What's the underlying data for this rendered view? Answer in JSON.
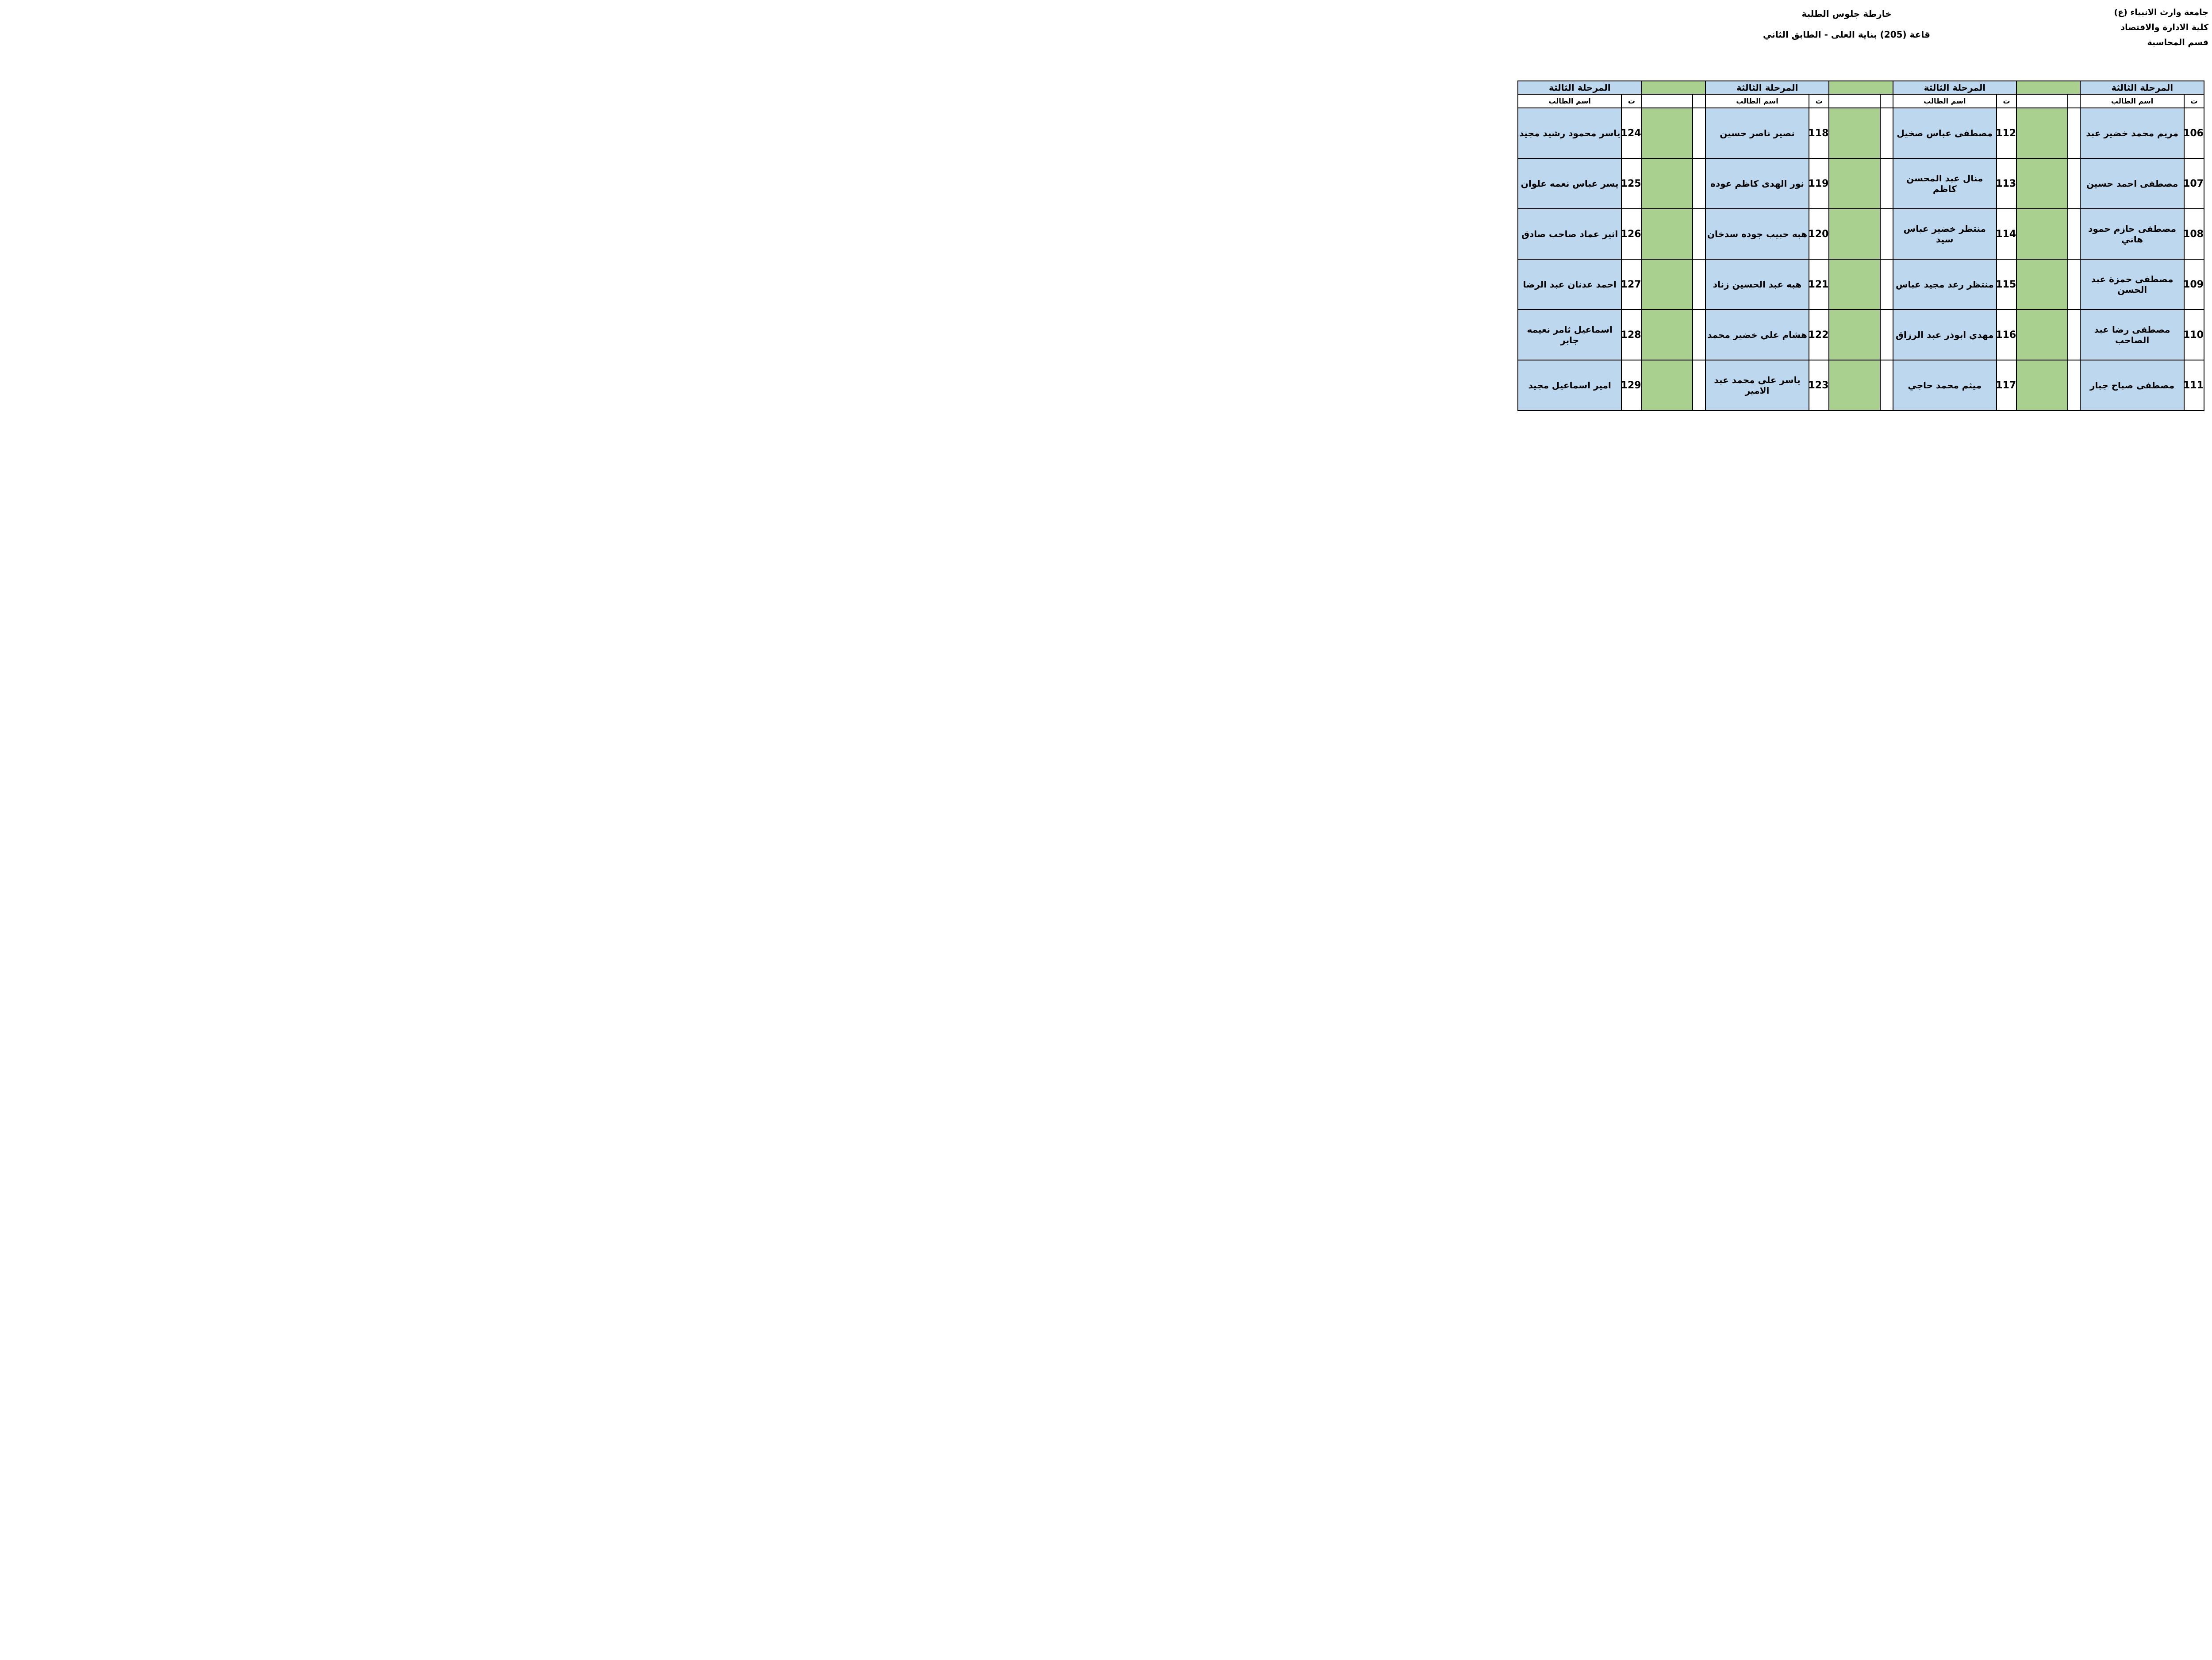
{
  "page": {
    "university": "جامعة وارث الانبياء (ع)",
    "college": "كلية الادارة والاقتصاد",
    "department": "قسم المحاسبة",
    "title": "خارطة جلوس الطلبة",
    "subtitle": "قاعة (205) بناية العلى - الطابق الثاني"
  },
  "table": {
    "stage_header": "المرحلة الثالثة",
    "serial_header": "ت",
    "name_header": "اسم الطالب",
    "groups": [
      {
        "students": [
          {
            "no": "106",
            "name": "مريم محمد خضير عبد"
          },
          {
            "no": "107",
            "name": "مصطفى احمد حسين"
          },
          {
            "no": "108",
            "name": "مصطفى حازم حمود هاني"
          },
          {
            "no": "109",
            "name": "مصطفى حمزة عبد الحسن"
          },
          {
            "no": "110",
            "name": "مصطفى رضا عبد الصاحب"
          },
          {
            "no": "111",
            "name": "مصطفى صباح جبار"
          }
        ]
      },
      {
        "students": [
          {
            "no": "112",
            "name": "مصطفى عباس صخيل"
          },
          {
            "no": "113",
            "name": "منال عبد المحسن كاظم"
          },
          {
            "no": "114",
            "name": "منتظر خضير عباس سيد"
          },
          {
            "no": "115",
            "name": "منتظر رعد مجيد عباس"
          },
          {
            "no": "116",
            "name": "مهدي ابوذر عبد الرزاق"
          },
          {
            "no": "117",
            "name": "ميثم محمد حاجي"
          }
        ]
      },
      {
        "students": [
          {
            "no": "118",
            "name": "نصير ناصر حسين"
          },
          {
            "no": "119",
            "name": "نور الهدى كاظم عوده"
          },
          {
            "no": "120",
            "name": "هبه حبيب جوده سدخان"
          },
          {
            "no": "121",
            "name": "هبه عبد الحسين زناد"
          },
          {
            "no": "122",
            "name": "هشام علي خضير محمد"
          },
          {
            "no": "123",
            "name": "ياسر علي محمد عبد الامير"
          }
        ]
      },
      {
        "students": [
          {
            "no": "124",
            "name": "ياسر محمود رشيد مجيد"
          },
          {
            "no": "125",
            "name": "يسر عباس نعمه علوان"
          },
          {
            "no": "126",
            "name": "اثير عماد صاحب صادق"
          },
          {
            "no": "127",
            "name": "احمد عدنان عبد الرضا"
          },
          {
            "no": "128",
            "name": "اسماعيل ثامر نعيمه جابر"
          },
          {
            "no": "129",
            "name": "امير اسماعيل مجيد"
          }
        ]
      }
    ]
  },
  "colors": {
    "name_cell_blue": "#BDD7EE",
    "spacer_green": "#A9D08E",
    "border": "#000000"
  }
}
